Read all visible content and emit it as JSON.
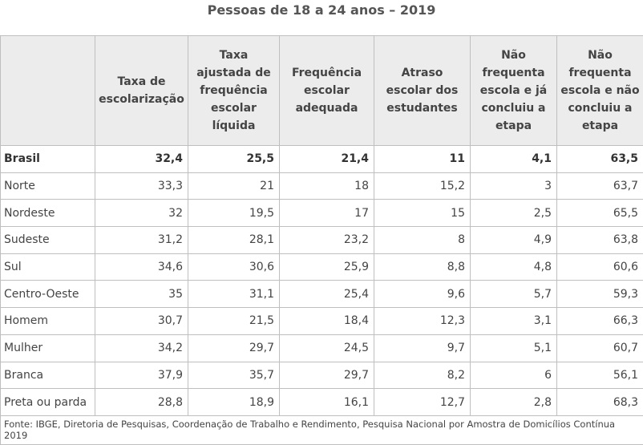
{
  "title": "Pessoas de 18 a 24 anos – 2019",
  "table": {
    "headers": [
      "",
      "Taxa de escolarização",
      "Taxa ajustada de frequência escolar líquida",
      "Frequência escolar adequada",
      "Atraso escolar dos estudantes",
      "Não frequenta escola e já concluiu a etapa",
      "Não frequenta escola e não concluiu a etapa"
    ],
    "rows": [
      {
        "label": "Brasil",
        "values": [
          "32,4",
          "25,5",
          "21,4",
          "11",
          "4,1",
          "63,5"
        ]
      },
      {
        "label": "Norte",
        "values": [
          "33,3",
          "21",
          "18",
          "15,2",
          "3",
          "63,7"
        ]
      },
      {
        "label": "Nordeste",
        "values": [
          "32",
          "19,5",
          "17",
          "15",
          "2,5",
          "65,5"
        ]
      },
      {
        "label": "Sudeste",
        "values": [
          "31,2",
          "28,1",
          "23,2",
          "8",
          "4,9",
          "63,8"
        ]
      },
      {
        "label": "Sul",
        "values": [
          "34,6",
          "30,6",
          "25,9",
          "8,8",
          "4,8",
          "60,6"
        ]
      },
      {
        "label": "Centro-Oeste",
        "values": [
          "35",
          "31,1",
          "25,4",
          "9,6",
          "5,7",
          "59,3"
        ]
      },
      {
        "label": "Homem",
        "values": [
          "30,7",
          "21,5",
          "18,4",
          "12,3",
          "3,1",
          "66,3"
        ]
      },
      {
        "label": "Mulher",
        "values": [
          "34,2",
          "29,7",
          "24,5",
          "9,7",
          "5,1",
          "60,7"
        ]
      },
      {
        "label": "Branca",
        "values": [
          "37,9",
          "35,7",
          "29,7",
          "8,2",
          "6",
          "56,1"
        ]
      },
      {
        "label": "Preta ou parda",
        "values": [
          "28,8",
          "18,9",
          "16,1",
          "12,7",
          "2,8",
          "68,3"
        ]
      }
    ],
    "source": "Fonte: IBGE, Diretoria de Pesquisas, Coordenação de Trabalho e Rendimento, Pesquisa Nacional por Amostra de Domicílios Contínua 2019"
  }
}
